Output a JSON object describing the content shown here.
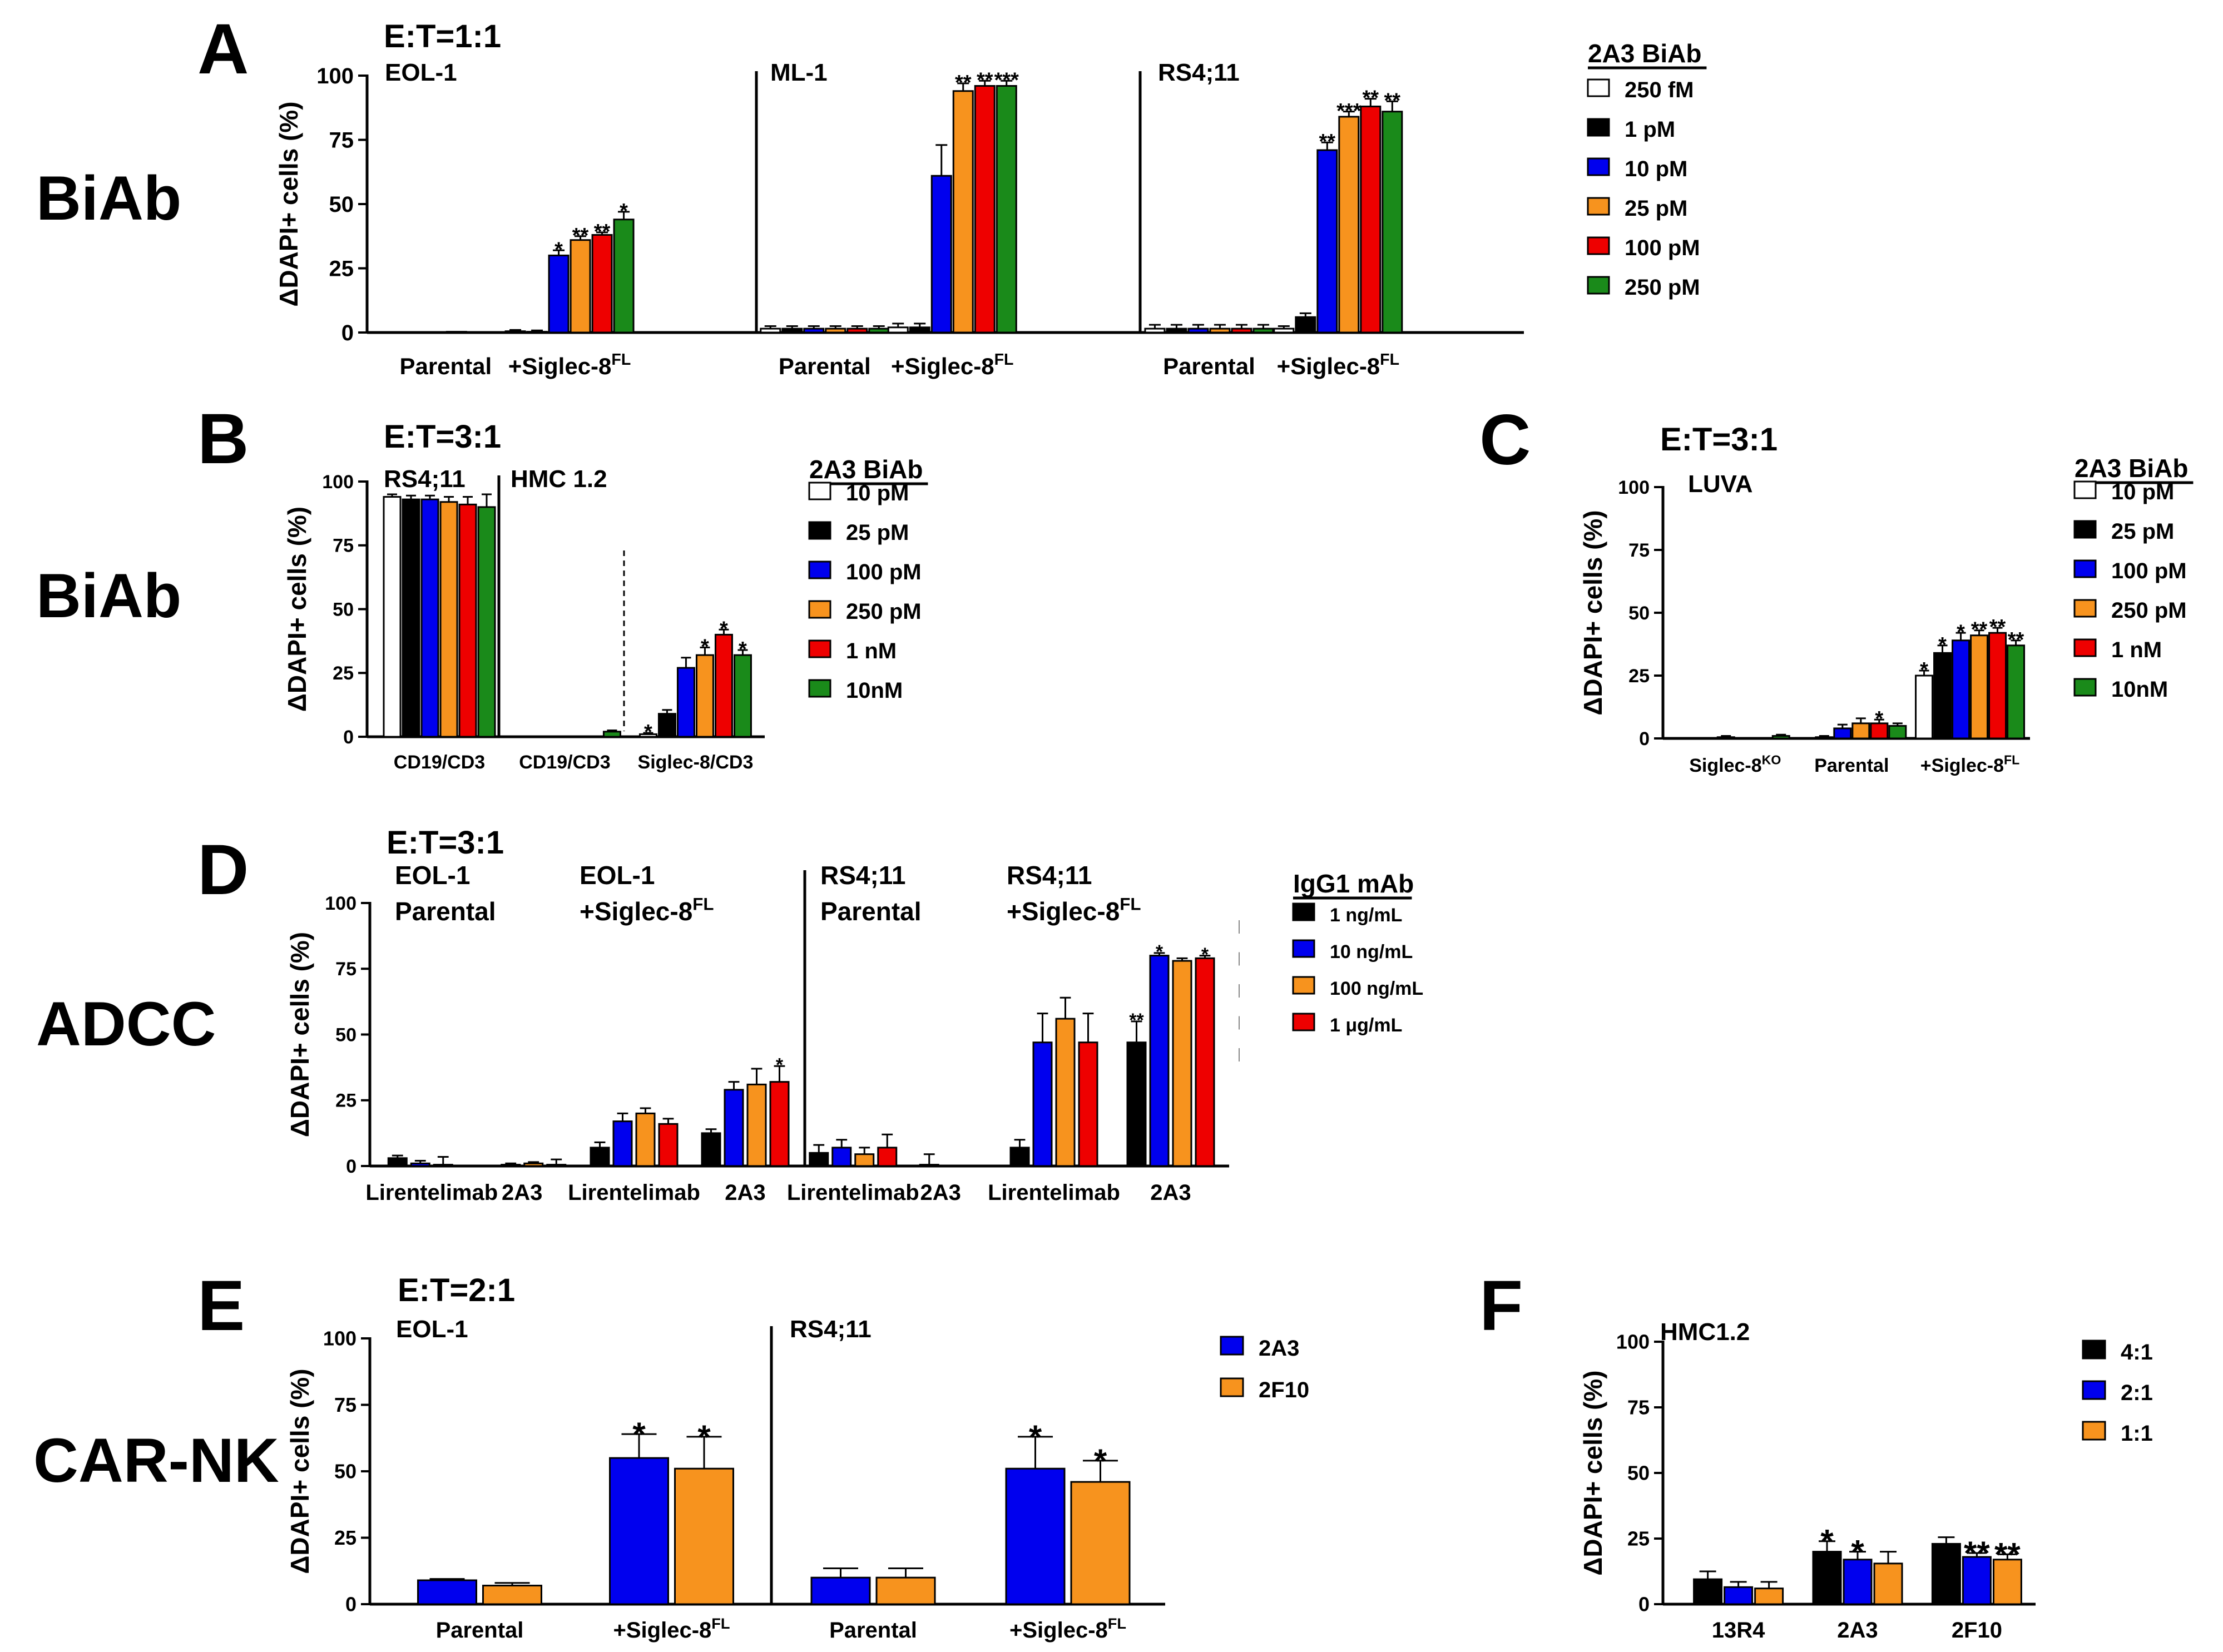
{
  "colors": {
    "white": "#ffffff",
    "black": "#000000",
    "blue": "#0000ee",
    "orange": "#f7931e",
    "red": "#ee0000",
    "green": "#1a8a1a"
  },
  "axis_label": "ΔDAPI+ cells (%)",
  "row_labels": [
    "BiAb",
    "BiAb",
    "ADCC",
    "CAR-NK"
  ],
  "chart_data": [
    {
      "id": "A",
      "type": "bar",
      "letter": "A",
      "et": "E:T=1:1",
      "ylabel": "ΔDAPI+ cells (%)",
      "ylim": [
        0,
        100
      ],
      "yticks": [
        0,
        25,
        50,
        75,
        100
      ],
      "legend_title": "2A3 BiAb",
      "legend": [
        {
          "label": "250 fM",
          "color": "#ffffff"
        },
        {
          "label": "1 pM",
          "color": "#000000"
        },
        {
          "label": "10 pM",
          "color": "#0000ee"
        },
        {
          "label": "25 pM",
          "color": "#f7931e"
        },
        {
          "label": "100 pM",
          "color": "#ee0000"
        },
        {
          "label": "250 pM",
          "color": "#1a8a1a"
        }
      ],
      "panels": [
        {
          "label": "EOL-1",
          "groups": [
            {
              "name": "Parental",
              "values": [
                0,
                0,
                0,
                0.3,
                0,
                0
              ],
              "errors": [
                0,
                0,
                0,
                0,
                0,
                0
              ],
              "sig": [
                "",
                "",
                "",
                "",
                "",
                ""
              ]
            },
            {
              "name": "+Siglec-8",
              "sup": "FL",
              "values": [
                0.5,
                0.3,
                30,
                36,
                38,
                44
              ],
              "errors": [
                0.5,
                0.5,
                2,
                1.5,
                1,
                3
              ],
              "sig": [
                "",
                "",
                "*",
                "**",
                "**",
                "*"
              ]
            }
          ]
        },
        {
          "label": "ML-1",
          "groups": [
            {
              "name": "Parental",
              "values": [
                1.5,
                1.5,
                1.5,
                1.5,
                1.5,
                1.5
              ],
              "errors": [
                1,
                1,
                1,
                1,
                1,
                1
              ],
              "sig": [
                "",
                "",
                "",
                "",
                "",
                ""
              ]
            },
            {
              "name": "+Siglec-8",
              "sup": "FL",
              "values": [
                2,
                2,
                61,
                94,
                96,
                96
              ],
              "errors": [
                1.5,
                1.5,
                12,
                3,
                2,
                2
              ],
              "sig": [
                "",
                "",
                "",
                "**",
                "**",
                "***"
              ]
            }
          ]
        },
        {
          "label": "RS4;11",
          "groups": [
            {
              "name": "Parental",
              "values": [
                1.5,
                1.5,
                1.5,
                1.5,
                1.5,
                1.5
              ],
              "errors": [
                1.5,
                1.5,
                1.5,
                1.5,
                1.5,
                1.5
              ],
              "sig": [
                "",
                "",
                "",
                "",
                "",
                ""
              ]
            },
            {
              "name": "+Siglec-8",
              "sup": "FL",
              "values": [
                1.5,
                6,
                71,
                84,
                88,
                86
              ],
              "errors": [
                1,
                1.5,
                3,
                2,
                3,
                4
              ],
              "sig": [
                "",
                "",
                "**",
                "***",
                "**",
                "**"
              ]
            }
          ]
        }
      ]
    },
    {
      "id": "B",
      "type": "bar",
      "letter": "B",
      "et": "E:T=3:1",
      "ylabel": "ΔDAPI+ cells (%)",
      "ylim": [
        0,
        100
      ],
      "yticks": [
        0,
        25,
        50,
        75,
        100
      ],
      "legend_title": "2A3 BiAb",
      "legend": [
        {
          "label": "10 pM",
          "color": "#ffffff"
        },
        {
          "label": "25 pM",
          "color": "#000000"
        },
        {
          "label": "100 pM",
          "color": "#0000ee"
        },
        {
          "label": "250 pM",
          "color": "#f7931e"
        },
        {
          "label": "1 nM",
          "color": "#ee0000"
        },
        {
          "label": "10nM",
          "color": "#1a8a1a"
        }
      ],
      "panels": [
        {
          "label": "RS4;11",
          "groups": [
            {
              "name": "CD19/CD3",
              "values": [
                94,
                93,
                93,
                92,
                91,
                90
              ],
              "errors": [
                1,
                1.5,
                1.5,
                2,
                3,
                5
              ],
              "sig": [
                "",
                "",
                "",
                "",
                "",
                ""
              ]
            }
          ]
        },
        {
          "label": "HMC 1.2",
          "groups": [
            {
              "name": "CD19/CD3",
              "values": [
                0,
                0,
                0,
                0,
                0,
                2
              ],
              "errors": [
                0,
                0,
                0,
                0,
                0,
                0.5
              ],
              "sig": [
                "",
                "",
                "",
                "",
                "",
                ""
              ]
            },
            {
              "name": "Siglec-8/CD3",
              "values": [
                1,
                9,
                27,
                32,
                40,
                32
              ],
              "errors": [
                0.5,
                1.5,
                4,
                3,
                2,
                2
              ],
              "sig": [
                "*",
                "",
                "",
                "*",
                "*",
                "*"
              ]
            }
          ]
        }
      ]
    },
    {
      "id": "C",
      "type": "bar",
      "letter": "C",
      "et": "E:T=3:1",
      "ylabel": "ΔDAPI+ cells (%)",
      "ylim": [
        0,
        100
      ],
      "yticks": [
        0,
        25,
        50,
        75,
        100
      ],
      "legend_title": "2A3 BiAb",
      "legend": [
        {
          "label": "10 pM",
          "color": "#ffffff"
        },
        {
          "label": "25 pM",
          "color": "#000000"
        },
        {
          "label": "100 pM",
          "color": "#0000ee"
        },
        {
          "label": "250 pM",
          "color": "#f7931e"
        },
        {
          "label": "1 nM",
          "color": "#ee0000"
        },
        {
          "label": "10nM",
          "color": "#1a8a1a"
        }
      ],
      "panels": [
        {
          "label": "LUVA",
          "groups": [
            {
              "name": "Siglec-8",
              "sup": "KO",
              "values": [
                0,
                0,
                0.5,
                0,
                0,
                1
              ],
              "errors": [
                0,
                0,
                0.5,
                0,
                0,
                0.5
              ],
              "sig": [
                "",
                "",
                "",
                "",
                "",
                ""
              ]
            },
            {
              "name": "Parental",
              "values": [
                0,
                0.5,
                4,
                6,
                6,
                5
              ],
              "errors": [
                0,
                0.5,
                1.5,
                2,
                1.5,
                1
              ],
              "sig": [
                "",
                "",
                "",
                "",
                "*",
                ""
              ]
            },
            {
              "name": "+Siglec-8",
              "sup": "FL",
              "values": [
                25,
                34,
                39,
                41,
                42,
                37
              ],
              "errors": [
                2,
                3,
                3,
                2,
                2,
                2
              ],
              "sig": [
                "*",
                "*",
                "*",
                "**",
                "**",
                "**"
              ]
            }
          ]
        }
      ]
    },
    {
      "id": "D",
      "type": "bar",
      "letter": "D",
      "et": "E:T=3:1",
      "ylabel": "ΔDAPI+ cells (%)",
      "ylim": [
        0,
        100
      ],
      "yticks": [
        0,
        25,
        50,
        75,
        100
      ],
      "legend_title": "IgG1 mAb",
      "legend": [
        {
          "label": "1 ng/mL",
          "color": "#000000"
        },
        {
          "label": "10 ng/mL",
          "color": "#0000ee"
        },
        {
          "label": "100 ng/mL",
          "color": "#f7931e"
        },
        {
          "label": "1 μg/mL",
          "color": "#ee0000"
        }
      ],
      "panels": [
        {
          "label": "EOL-1",
          "sub": "Parental",
          "groups": [
            {
              "name": "Lirentelimab",
              "values": [
                3,
                1,
                0.5,
                0
              ],
              "errors": [
                1,
                1,
                3,
                0
              ],
              "sig": [
                "",
                "",
                "",
                ""
              ]
            },
            {
              "name": "2A3",
              "values": [
                0,
                0.5,
                1,
                0.5
              ],
              "errors": [
                0,
                0.5,
                0.5,
                2
              ],
              "sig": [
                "",
                "",
                "",
                ""
              ]
            }
          ]
        },
        {
          "label": "EOL-1",
          "sub": "+Siglec-8",
          "subsup": "FL",
          "groups": [
            {
              "name": "Lirentelimab",
              "values": [
                7,
                17,
                20,
                16
              ],
              "errors": [
                2,
                3,
                2,
                2
              ],
              "sig": [
                "",
                "",
                "",
                ""
              ]
            },
            {
              "name": "2A3",
              "values": [
                12.5,
                29,
                31,
                32
              ],
              "errors": [
                1.5,
                3,
                6,
                6
              ],
              "sig": [
                "",
                "",
                "",
                "*"
              ]
            }
          ]
        },
        {
          "label": "RS4;11",
          "sub": "Parental",
          "groups": [
            {
              "name": "Lirentelimab",
              "values": [
                5,
                7,
                4.5,
                7
              ],
              "errors": [
                3,
                3,
                2.5,
                5
              ],
              "sig": [
                "",
                "",
                "",
                ""
              ]
            },
            {
              "name": "2A3",
              "values": [
                0,
                0.5,
                0,
                0
              ],
              "errors": [
                0,
                4,
                0,
                0
              ],
              "sig": [
                "",
                "",
                "",
                ""
              ]
            }
          ]
        },
        {
          "label": "RS4;11",
          "sub": "+Siglec-8",
          "subsup": "FL",
          "groups": [
            {
              "name": "Lirentelimab",
              "values": [
                7,
                47,
                56,
                47
              ],
              "errors": [
                3,
                11,
                8,
                11
              ],
              "sig": [
                "",
                "",
                "",
                ""
              ]
            },
            {
              "name": "2A3",
              "values": [
                47,
                80,
                78,
                79
              ],
              "errors": [
                8,
                1,
                1,
                1
              ],
              "sig": [
                "**",
                "*",
                "",
                "*"
              ]
            }
          ]
        }
      ]
    },
    {
      "id": "E",
      "type": "bar",
      "letter": "E",
      "et": "E:T=2:1",
      "ylabel": "ΔDAPI+ cells (%)",
      "ylim": [
        0,
        100
      ],
      "yticks": [
        0,
        25,
        50,
        75,
        100
      ],
      "legend_title": "",
      "legend": [
        {
          "label": "2A3",
          "color": "#0000ee"
        },
        {
          "label": "2F10",
          "color": "#f7931e"
        }
      ],
      "panels": [
        {
          "label": "EOL-1",
          "groups": [
            {
              "name": "Parental",
              "values": [
                9,
                7
              ],
              "errors": [
                0.5,
                1
              ],
              "sig": [
                "",
                ""
              ]
            },
            {
              "name": "+Siglec-8",
              "sup": "FL",
              "values": [
                55,
                51
              ],
              "errors": [
                9,
                12
              ],
              "sig": [
                "*",
                "*"
              ]
            }
          ]
        },
        {
          "label": "RS4;11",
          "groups": [
            {
              "name": "Parental",
              "values": [
                10,
                10
              ],
              "errors": [
                3.5,
                3.5
              ],
              "sig": [
                "",
                ""
              ]
            },
            {
              "name": "+Siglec-8",
              "sup": "FL",
              "values": [
                51,
                46
              ],
              "errors": [
                12,
                8
              ],
              "sig": [
                "*",
                "*"
              ]
            }
          ]
        }
      ]
    },
    {
      "id": "F",
      "type": "bar",
      "letter": "F",
      "et": "",
      "ylabel": "ΔDAPI+ cells (%)",
      "ylim": [
        0,
        100
      ],
      "yticks": [
        0,
        25,
        50,
        75,
        100
      ],
      "legend_title": "",
      "legend": [
        {
          "label": "4:1",
          "color": "#000000"
        },
        {
          "label": "2:1",
          "color": "#0000ee"
        },
        {
          "label": "1:1",
          "color": "#f7931e"
        }
      ],
      "panels": [
        {
          "label": "HMC1.2",
          "groups": [
            {
              "name": "13R4",
              "values": [
                9.5,
                6.5,
                6
              ],
              "errors": [
                3,
                2,
                2.5
              ],
              "sig": [
                "",
                "",
                ""
              ]
            },
            {
              "name": "2A3",
              "values": [
                20,
                17,
                15.5
              ],
              "errors": [
                4,
                3,
                4.5
              ],
              "sig": [
                "*",
                "*",
                ""
              ]
            },
            {
              "name": "2F10",
              "values": [
                23,
                18,
                17
              ],
              "errors": [
                2.5,
                1.5,
                2
              ],
              "sig": [
                "",
                "**",
                "**"
              ]
            }
          ]
        }
      ]
    }
  ]
}
